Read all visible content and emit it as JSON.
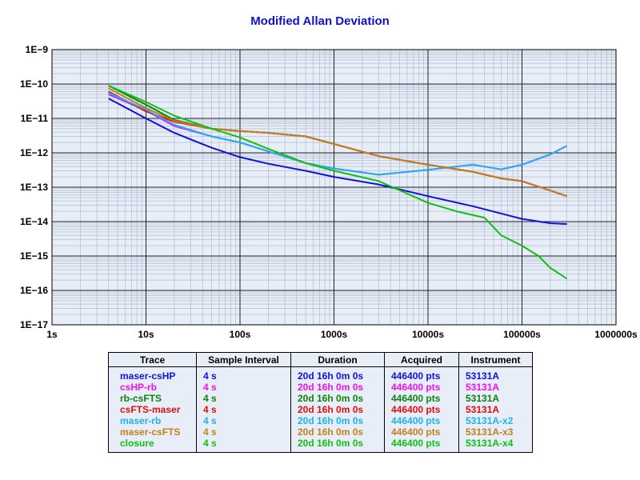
{
  "chart_data": {
    "type": "line",
    "title": "Modified Allan Deviation",
    "xscale": "log",
    "yscale": "log",
    "xlim": [
      1,
      1000000
    ],
    "ylim": [
      1e-17,
      1e-09
    ],
    "x_ticks": [
      {
        "value": 1,
        "label": "1s"
      },
      {
        "value": 10,
        "label": "10s"
      },
      {
        "value": 100,
        "label": "100s"
      },
      {
        "value": 1000,
        "label": "1000s"
      },
      {
        "value": 10000,
        "label": "10000s"
      },
      {
        "value": 100000,
        "label": "100000s"
      },
      {
        "value": 1000000,
        "label": "1000000s"
      }
    ],
    "y_ticks": [
      {
        "value": 1e-09,
        "label": "1E−9"
      },
      {
        "value": 1e-10,
        "label": "1E−10"
      },
      {
        "value": 1e-11,
        "label": "1E−11"
      },
      {
        "value": 1e-12,
        "label": "1E−12"
      },
      {
        "value": 1e-13,
        "label": "1E−13"
      },
      {
        "value": 1e-14,
        "label": "1E−14"
      },
      {
        "value": 1e-15,
        "label": "1E−15"
      },
      {
        "value": 1e-16,
        "label": "1E−16"
      },
      {
        "value": 1e-17,
        "label": "1E−17"
      }
    ],
    "grid": true,
    "series": [
      {
        "name": "maser-csHP",
        "color": "#1010e0",
        "x": [
          4,
          10,
          20,
          50,
          100,
          200,
          500,
          1000,
          3000,
          10000,
          30000,
          100000,
          200000,
          300000
        ],
        "y": [
          3.8e-11,
          1e-11,
          3.8e-12,
          1.4e-12,
          7.5e-13,
          4.8e-13,
          3e-13,
          2e-13,
          1.2e-13,
          5.5e-14,
          2.8e-14,
          1.2e-14,
          9e-15,
          8.5e-15
        ]
      },
      {
        "name": "csHP-rb",
        "color": "#f010f0",
        "x": [
          4,
          10,
          20,
          50,
          100,
          200,
          500,
          1000,
          3000,
          10000,
          30000,
          60000,
          100000,
          200000,
          300000
        ],
        "y": [
          5e-11,
          1.7e-11,
          6e-12,
          3e-12,
          2e-12,
          1.1e-12,
          5e-13,
          3.5e-13,
          2.3e-13,
          3.2e-13,
          4.5e-13,
          3.3e-13,
          4.5e-13,
          9e-13,
          1.6e-12
        ]
      },
      {
        "name": "rb-csFTS",
        "color": "#108010",
        "x": [
          4,
          10,
          20,
          50,
          100,
          200,
          500,
          1000,
          3000,
          10000,
          30000,
          60000,
          100000,
          200000,
          300000
        ],
        "y": [
          9e-11,
          2.5e-11,
          9e-12,
          5e-12,
          4.3e-12,
          3.8e-12,
          3e-12,
          1.8e-12,
          8e-13,
          4.5e-13,
          2.8e-13,
          1.8e-13,
          1.5e-13,
          8e-14,
          5.5e-14
        ]
      },
      {
        "name": "csFTS-maser",
        "color": "#e01010",
        "x": [
          4,
          10,
          20,
          50,
          100,
          200,
          500,
          1000,
          3000,
          10000,
          30000,
          60000,
          100000,
          200000,
          300000
        ],
        "y": [
          6e-11,
          1.6e-11,
          8e-12,
          5e-12,
          4.3e-12,
          3.8e-12,
          3e-12,
          1.8e-12,
          8e-13,
          4.5e-13,
          2.8e-13,
          1.8e-13,
          1.5e-13,
          8e-14,
          5.5e-14
        ]
      },
      {
        "name": "maser-rb",
        "color": "#20b0f0",
        "x": [
          4,
          10,
          20,
          50,
          100,
          200,
          500,
          1000,
          3000,
          10000,
          30000,
          60000,
          100000,
          200000,
          300000
        ],
        "y": [
          5.5e-11,
          1.8e-11,
          6.5e-12,
          3e-12,
          2e-12,
          1.1e-12,
          5e-13,
          3.5e-13,
          2.3e-13,
          3.2e-13,
          4.5e-13,
          3.3e-13,
          4.5e-13,
          9e-13,
          1.6e-12
        ]
      },
      {
        "name": "maser-csFTS",
        "color": "#c08020",
        "x": [
          4,
          10,
          20,
          50,
          100,
          200,
          500,
          1000,
          3000,
          10000,
          30000,
          60000,
          100000,
          200000,
          300000
        ],
        "y": [
          7.5e-11,
          2e-11,
          8.5e-12,
          5e-12,
          4.3e-12,
          3.8e-12,
          3e-12,
          1.8e-12,
          8e-13,
          4.5e-13,
          2.8e-13,
          1.8e-13,
          1.5e-13,
          8e-14,
          5.5e-14
        ]
      },
      {
        "name": "closure",
        "color": "#10c010",
        "x": [
          4,
          10,
          20,
          50,
          100,
          200,
          500,
          1000,
          3000,
          10000,
          20000,
          40000,
          60000,
          100000,
          150000,
          200000,
          300000
        ],
        "y": [
          9e-11,
          3e-11,
          1.2e-11,
          5e-12,
          2.8e-12,
          1.3e-12,
          5e-13,
          3e-13,
          1.5e-13,
          3.5e-14,
          2e-14,
          1.3e-14,
          4e-15,
          2e-15,
          1e-15,
          4.5e-16,
          2.2e-16
        ]
      }
    ]
  },
  "table": {
    "headers": [
      "Trace",
      "Sample Interval",
      "Duration",
      "Acquired",
      "Instrument"
    ],
    "rows": [
      {
        "trace": "maser-csHP",
        "interval": "4 s",
        "duration": "20d 16h 0m 0s",
        "acquired": "446400 pts",
        "instrument": "53131A",
        "color": "#1010e0"
      },
      {
        "trace": "csHP-rb",
        "interval": "4 s",
        "duration": "20d 16h 0m 0s",
        "acquired": "446400 pts",
        "instrument": "53131A",
        "color": "#f010f0"
      },
      {
        "trace": "rb-csFTS",
        "interval": "4 s",
        "duration": "20d 16h 0m 0s",
        "acquired": "446400 pts",
        "instrument": "53131A",
        "color": "#108010"
      },
      {
        "trace": "csFTS-maser",
        "interval": "4 s",
        "duration": "20d 16h 0m 0s",
        "acquired": "446400 pts",
        "instrument": "53131A",
        "color": "#e01010"
      },
      {
        "trace": "maser-rb",
        "interval": "4 s",
        "duration": "20d 16h 0m 0s",
        "acquired": "446400 pts",
        "instrument": "53131A-x2",
        "color": "#20b0f0"
      },
      {
        "trace": "maser-csFTS",
        "interval": "4 s",
        "duration": "20d 16h 0m 0s",
        "acquired": "446400 pts",
        "instrument": "53131A-x3",
        "color": "#c08020"
      },
      {
        "trace": "closure",
        "interval": "4 s",
        "duration": "20d 16h 0m 0s",
        "acquired": "446400 pts",
        "instrument": "53131A-x4",
        "color": "#10c010"
      }
    ]
  }
}
